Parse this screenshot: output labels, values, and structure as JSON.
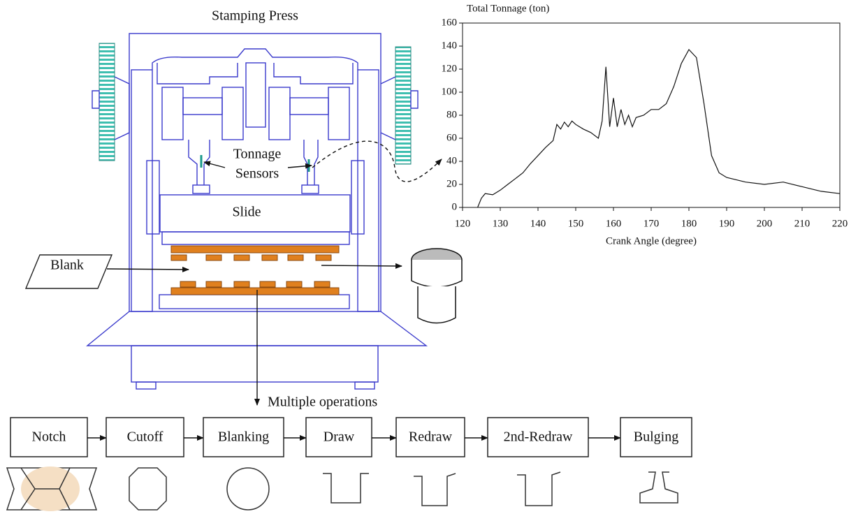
{
  "press": {
    "title": "Stamping Press",
    "sensor_label": [
      "Tonnage",
      "Sensors"
    ],
    "slide_label": "Slide",
    "blank_label": "Blank",
    "operations_label": "Multiple operations"
  },
  "operations": [
    "Notch",
    "Cutoff",
    "Blanking",
    "Draw",
    "Redraw",
    "2nd-Redraw",
    "Bulging"
  ],
  "chart_data": {
    "type": "line",
    "ylabel": "Total Tonnage (ton)",
    "xlabel": "Crank Angle (degree)",
    "x": [
      124,
      125,
      126,
      128,
      130,
      132,
      134,
      136,
      138,
      140,
      142,
      144,
      145,
      146,
      147,
      148,
      149,
      150,
      152,
      154,
      156,
      157,
      158,
      159,
      160,
      161,
      162,
      163,
      164,
      165,
      166,
      168,
      170,
      172,
      174,
      176,
      178,
      180,
      182,
      184,
      186,
      188,
      190,
      195,
      200,
      205,
      210,
      215,
      220
    ],
    "values": [
      0,
      8,
      12,
      11,
      15,
      20,
      25,
      30,
      38,
      45,
      52,
      58,
      72,
      68,
      74,
      70,
      75,
      72,
      68,
      65,
      60,
      75,
      122,
      70,
      95,
      70,
      85,
      72,
      80,
      70,
      78,
      80,
      85,
      85,
      90,
      105,
      125,
      137,
      130,
      90,
      45,
      30,
      26,
      22,
      20,
      22,
      18,
      14,
      12
    ],
    "color": "#111111",
    "xlim": [
      120,
      220
    ],
    "xticks": [
      120,
      130,
      140,
      150,
      160,
      170,
      180,
      190,
      200,
      210,
      220
    ],
    "ylim": [
      0,
      160
    ],
    "yticks": [
      0,
      20,
      40,
      60,
      80,
      100,
      120,
      140,
      160
    ]
  }
}
